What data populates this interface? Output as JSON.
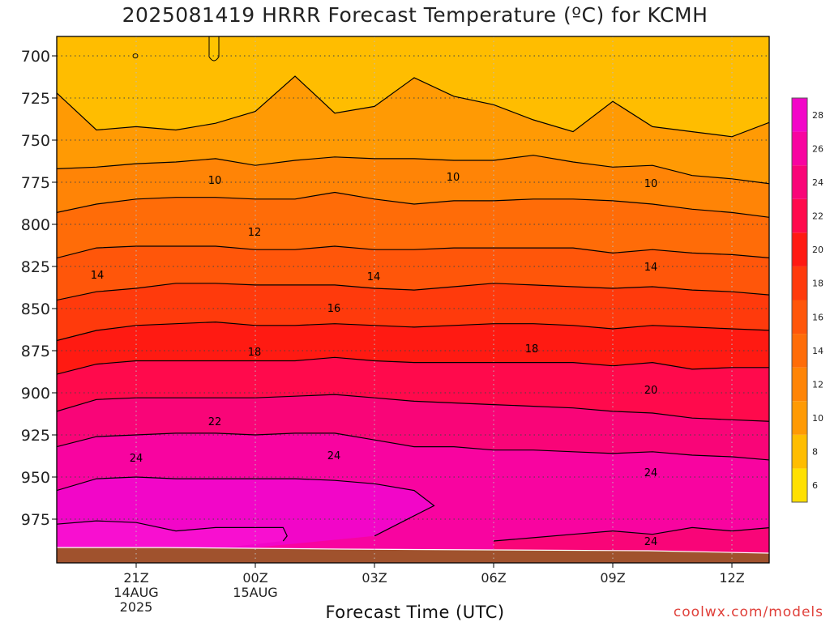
{
  "title": "2025081419 HRRR Forecast Temperature (ºC) for KCMH",
  "xlabel": "Forecast Time (UTC)",
  "credit": "coolwx.com/models",
  "colors": {
    "band_ge28": "#f206c8",
    "band_26": "#f804a0",
    "band_24": "#f90578",
    "band_22": "#ff0a4c",
    "band_20": "#ff1a12",
    "band_18": "#ff3a0c",
    "band_16": "#ff560a",
    "band_14": "#ff6c08",
    "band_12": "#ff8406",
    "band_10": "#ff9a04",
    "band_8": "#ffbd00",
    "band_6": "#ffde00",
    "ground": "#a0522d"
  },
  "colorbar": {
    "labels": [
      "6",
      "8",
      "10",
      "12",
      "14",
      "16",
      "18",
      "20",
      "22",
      "24",
      "26",
      "28"
    ],
    "colors": [
      "#ffe000",
      "#ffbd00",
      "#ff9a04",
      "#ff8406",
      "#ff6c08",
      "#ff560a",
      "#ff3a0c",
      "#ff1a12",
      "#ff0a4c",
      "#f90578",
      "#f804a0",
      "#f206c8"
    ]
  },
  "chart_data": {
    "type": "contour",
    "variable": "Forecast Temperature (ºC)",
    "xlabel": "Forecast Time (UTC)",
    "ylabel": "",
    "x_ticks": [
      "21Z",
      "00Z",
      "03Z",
      "06Z",
      "09Z",
      "12Z"
    ],
    "x_tick_dates": [
      "14AUG\n2025",
      "15AUG",
      "",
      "",
      "",
      ""
    ],
    "x_range_hours": [
      -2,
      16
    ],
    "x_tick_hours": [
      0,
      3,
      6,
      9,
      12,
      15
    ],
    "y_ticks": [
      700,
      725,
      750,
      775,
      800,
      825,
      850,
      875,
      900,
      925,
      950,
      975
    ],
    "y_range_hPa": [
      689,
      992
    ],
    "y_inverted": true,
    "grid": true,
    "contour_levels": [
      10,
      12,
      14,
      16,
      18,
      20,
      22,
      24
    ],
    "contour_label_values": [
      10,
      10,
      10,
      12,
      14,
      14,
      14,
      16,
      18,
      18,
      20,
      22,
      24,
      24,
      24
    ],
    "contours": [
      {
        "level": 8,
        "points": [
          [
            -2,
            722
          ],
          [
            -1,
            744
          ],
          [
            0,
            742
          ],
          [
            1,
            744
          ],
          [
            2,
            740
          ],
          [
            3,
            733
          ],
          [
            4,
            712
          ],
          [
            5,
            734
          ],
          [
            6,
            730
          ],
          [
            7,
            713
          ],
          [
            8,
            724
          ],
          [
            9,
            729
          ],
          [
            10,
            738
          ],
          [
            11,
            745
          ],
          [
            12,
            727
          ],
          [
            13,
            742
          ],
          [
            14,
            745
          ],
          [
            15,
            748
          ],
          [
            16,
            739
          ]
        ]
      },
      {
        "level": 10,
        "points": [
          [
            -2,
            767
          ],
          [
            -1,
            766
          ],
          [
            0,
            764
          ],
          [
            1,
            763
          ],
          [
            2,
            761
          ],
          [
            3,
            765
          ],
          [
            4,
            762
          ],
          [
            5,
            760
          ],
          [
            6,
            761
          ],
          [
            7,
            761
          ],
          [
            8,
            762
          ],
          [
            9,
            762
          ],
          [
            10,
            759
          ],
          [
            11,
            763
          ],
          [
            12,
            766
          ],
          [
            13,
            765
          ],
          [
            14,
            771
          ],
          [
            15,
            773
          ],
          [
            16,
            776
          ]
        ]
      },
      {
        "level": 12,
        "points": [
          [
            -2,
            793
          ],
          [
            -1,
            788
          ],
          [
            0,
            785
          ],
          [
            1,
            784
          ],
          [
            2,
            784
          ],
          [
            3,
            785
          ],
          [
            4,
            785
          ],
          [
            5,
            781
          ],
          [
            6,
            785
          ],
          [
            7,
            788
          ],
          [
            8,
            786
          ],
          [
            9,
            786
          ],
          [
            10,
            785
          ],
          [
            11,
            785
          ],
          [
            12,
            786
          ],
          [
            13,
            788
          ],
          [
            14,
            791
          ],
          [
            15,
            793
          ],
          [
            16,
            796
          ]
        ]
      },
      {
        "level": 14,
        "points": [
          [
            -2,
            820
          ],
          [
            -1,
            814
          ],
          [
            0,
            813
          ],
          [
            1,
            813
          ],
          [
            2,
            813
          ],
          [
            3,
            815
          ],
          [
            4,
            815
          ],
          [
            5,
            813
          ],
          [
            6,
            815
          ],
          [
            7,
            815
          ],
          [
            8,
            814
          ],
          [
            9,
            814
          ],
          [
            10,
            814
          ],
          [
            11,
            814
          ],
          [
            12,
            817
          ],
          [
            13,
            815
          ],
          [
            14,
            817
          ],
          [
            15,
            818
          ],
          [
            16,
            820
          ]
        ]
      },
      {
        "level": 16,
        "points": [
          [
            -2,
            845
          ],
          [
            -1,
            840
          ],
          [
            0,
            838
          ],
          [
            1,
            835
          ],
          [
            2,
            835
          ],
          [
            3,
            836
          ],
          [
            4,
            836
          ],
          [
            5,
            836
          ],
          [
            6,
            838
          ],
          [
            7,
            839
          ],
          [
            8,
            837
          ],
          [
            9,
            835
          ],
          [
            10,
            836
          ],
          [
            11,
            837
          ],
          [
            12,
            838
          ],
          [
            13,
            837
          ],
          [
            14,
            839
          ],
          [
            15,
            840
          ],
          [
            16,
            842
          ]
        ]
      },
      {
        "level": 18,
        "points": [
          [
            -2,
            869
          ],
          [
            -1,
            863
          ],
          [
            0,
            860
          ],
          [
            1,
            859
          ],
          [
            2,
            858
          ],
          [
            3,
            860
          ],
          [
            4,
            860
          ],
          [
            5,
            859
          ],
          [
            6,
            860
          ],
          [
            7,
            861
          ],
          [
            8,
            860
          ],
          [
            9,
            859
          ],
          [
            10,
            859
          ],
          [
            11,
            860
          ],
          [
            12,
            862
          ],
          [
            13,
            860
          ],
          [
            14,
            861
          ],
          [
            15,
            862
          ],
          [
            16,
            863
          ]
        ]
      },
      {
        "level": 20,
        "points": [
          [
            -2,
            889
          ],
          [
            -1,
            883
          ],
          [
            0,
            881
          ],
          [
            1,
            881
          ],
          [
            2,
            881
          ],
          [
            3,
            881
          ],
          [
            4,
            881
          ],
          [
            5,
            879
          ],
          [
            6,
            881
          ],
          [
            7,
            882
          ],
          [
            8,
            882
          ],
          [
            9,
            882
          ],
          [
            10,
            882
          ],
          [
            11,
            882
          ],
          [
            12,
            884
          ],
          [
            13,
            882
          ],
          [
            14,
            886
          ],
          [
            15,
            885
          ],
          [
            16,
            885
          ]
        ]
      },
      {
        "level": 22,
        "points": [
          [
            -2,
            911
          ],
          [
            -1,
            904
          ],
          [
            0,
            903
          ],
          [
            1,
            903
          ],
          [
            2,
            903
          ],
          [
            3,
            903
          ],
          [
            4,
            902
          ],
          [
            5,
            901
          ],
          [
            6,
            903
          ],
          [
            7,
            905
          ],
          [
            8,
            906
          ],
          [
            9,
            907
          ],
          [
            10,
            908
          ],
          [
            11,
            909
          ],
          [
            12,
            911
          ],
          [
            13,
            912
          ],
          [
            14,
            915
          ],
          [
            15,
            916
          ],
          [
            16,
            917
          ]
        ]
      },
      {
        "level": 24,
        "points": [
          [
            -2,
            932
          ],
          [
            -1,
            926
          ],
          [
            0,
            925
          ],
          [
            1,
            924
          ],
          [
            2,
            924
          ],
          [
            3,
            925
          ],
          [
            4,
            924
          ],
          [
            5,
            924
          ],
          [
            6,
            928
          ],
          [
            7,
            932
          ],
          [
            8,
            932
          ],
          [
            9,
            934
          ],
          [
            10,
            934
          ],
          [
            11,
            935
          ],
          [
            12,
            936
          ],
          [
            13,
            935
          ],
          [
            14,
            937
          ],
          [
            15,
            938
          ],
          [
            16,
            940
          ]
        ]
      },
      {
        "level": 26,
        "points": [
          [
            -2,
            958
          ],
          [
            -1,
            951
          ],
          [
            0,
            950
          ],
          [
            1,
            951
          ],
          [
            2,
            951
          ],
          [
            3,
            951
          ],
          [
            4,
            951
          ],
          [
            5,
            952
          ],
          [
            6,
            954
          ],
          [
            7,
            958
          ],
          [
            7.5,
            967
          ],
          [
            7,
            973
          ],
          [
            6.5,
            979
          ],
          [
            6,
            985
          ]
        ]
      },
      {
        "level": 28,
        "points": [
          [
            -2,
            978
          ],
          [
            -1,
            976
          ],
          [
            0,
            977
          ],
          [
            1,
            982
          ],
          [
            2,
            980
          ],
          [
            3,
            980
          ],
          [
            3.7,
            980
          ],
          [
            3.8,
            985
          ],
          [
            3.7,
            988
          ]
        ]
      },
      {
        "level": 24,
        "points": [
          [
            9,
            988
          ],
          [
            10,
            986
          ],
          [
            11,
            984
          ],
          [
            12,
            982
          ],
          [
            13,
            984
          ],
          [
            14,
            980
          ],
          [
            15,
            982
          ],
          [
            16,
            980
          ]
        ]
      }
    ],
    "ground_level_hPa": 986
  }
}
